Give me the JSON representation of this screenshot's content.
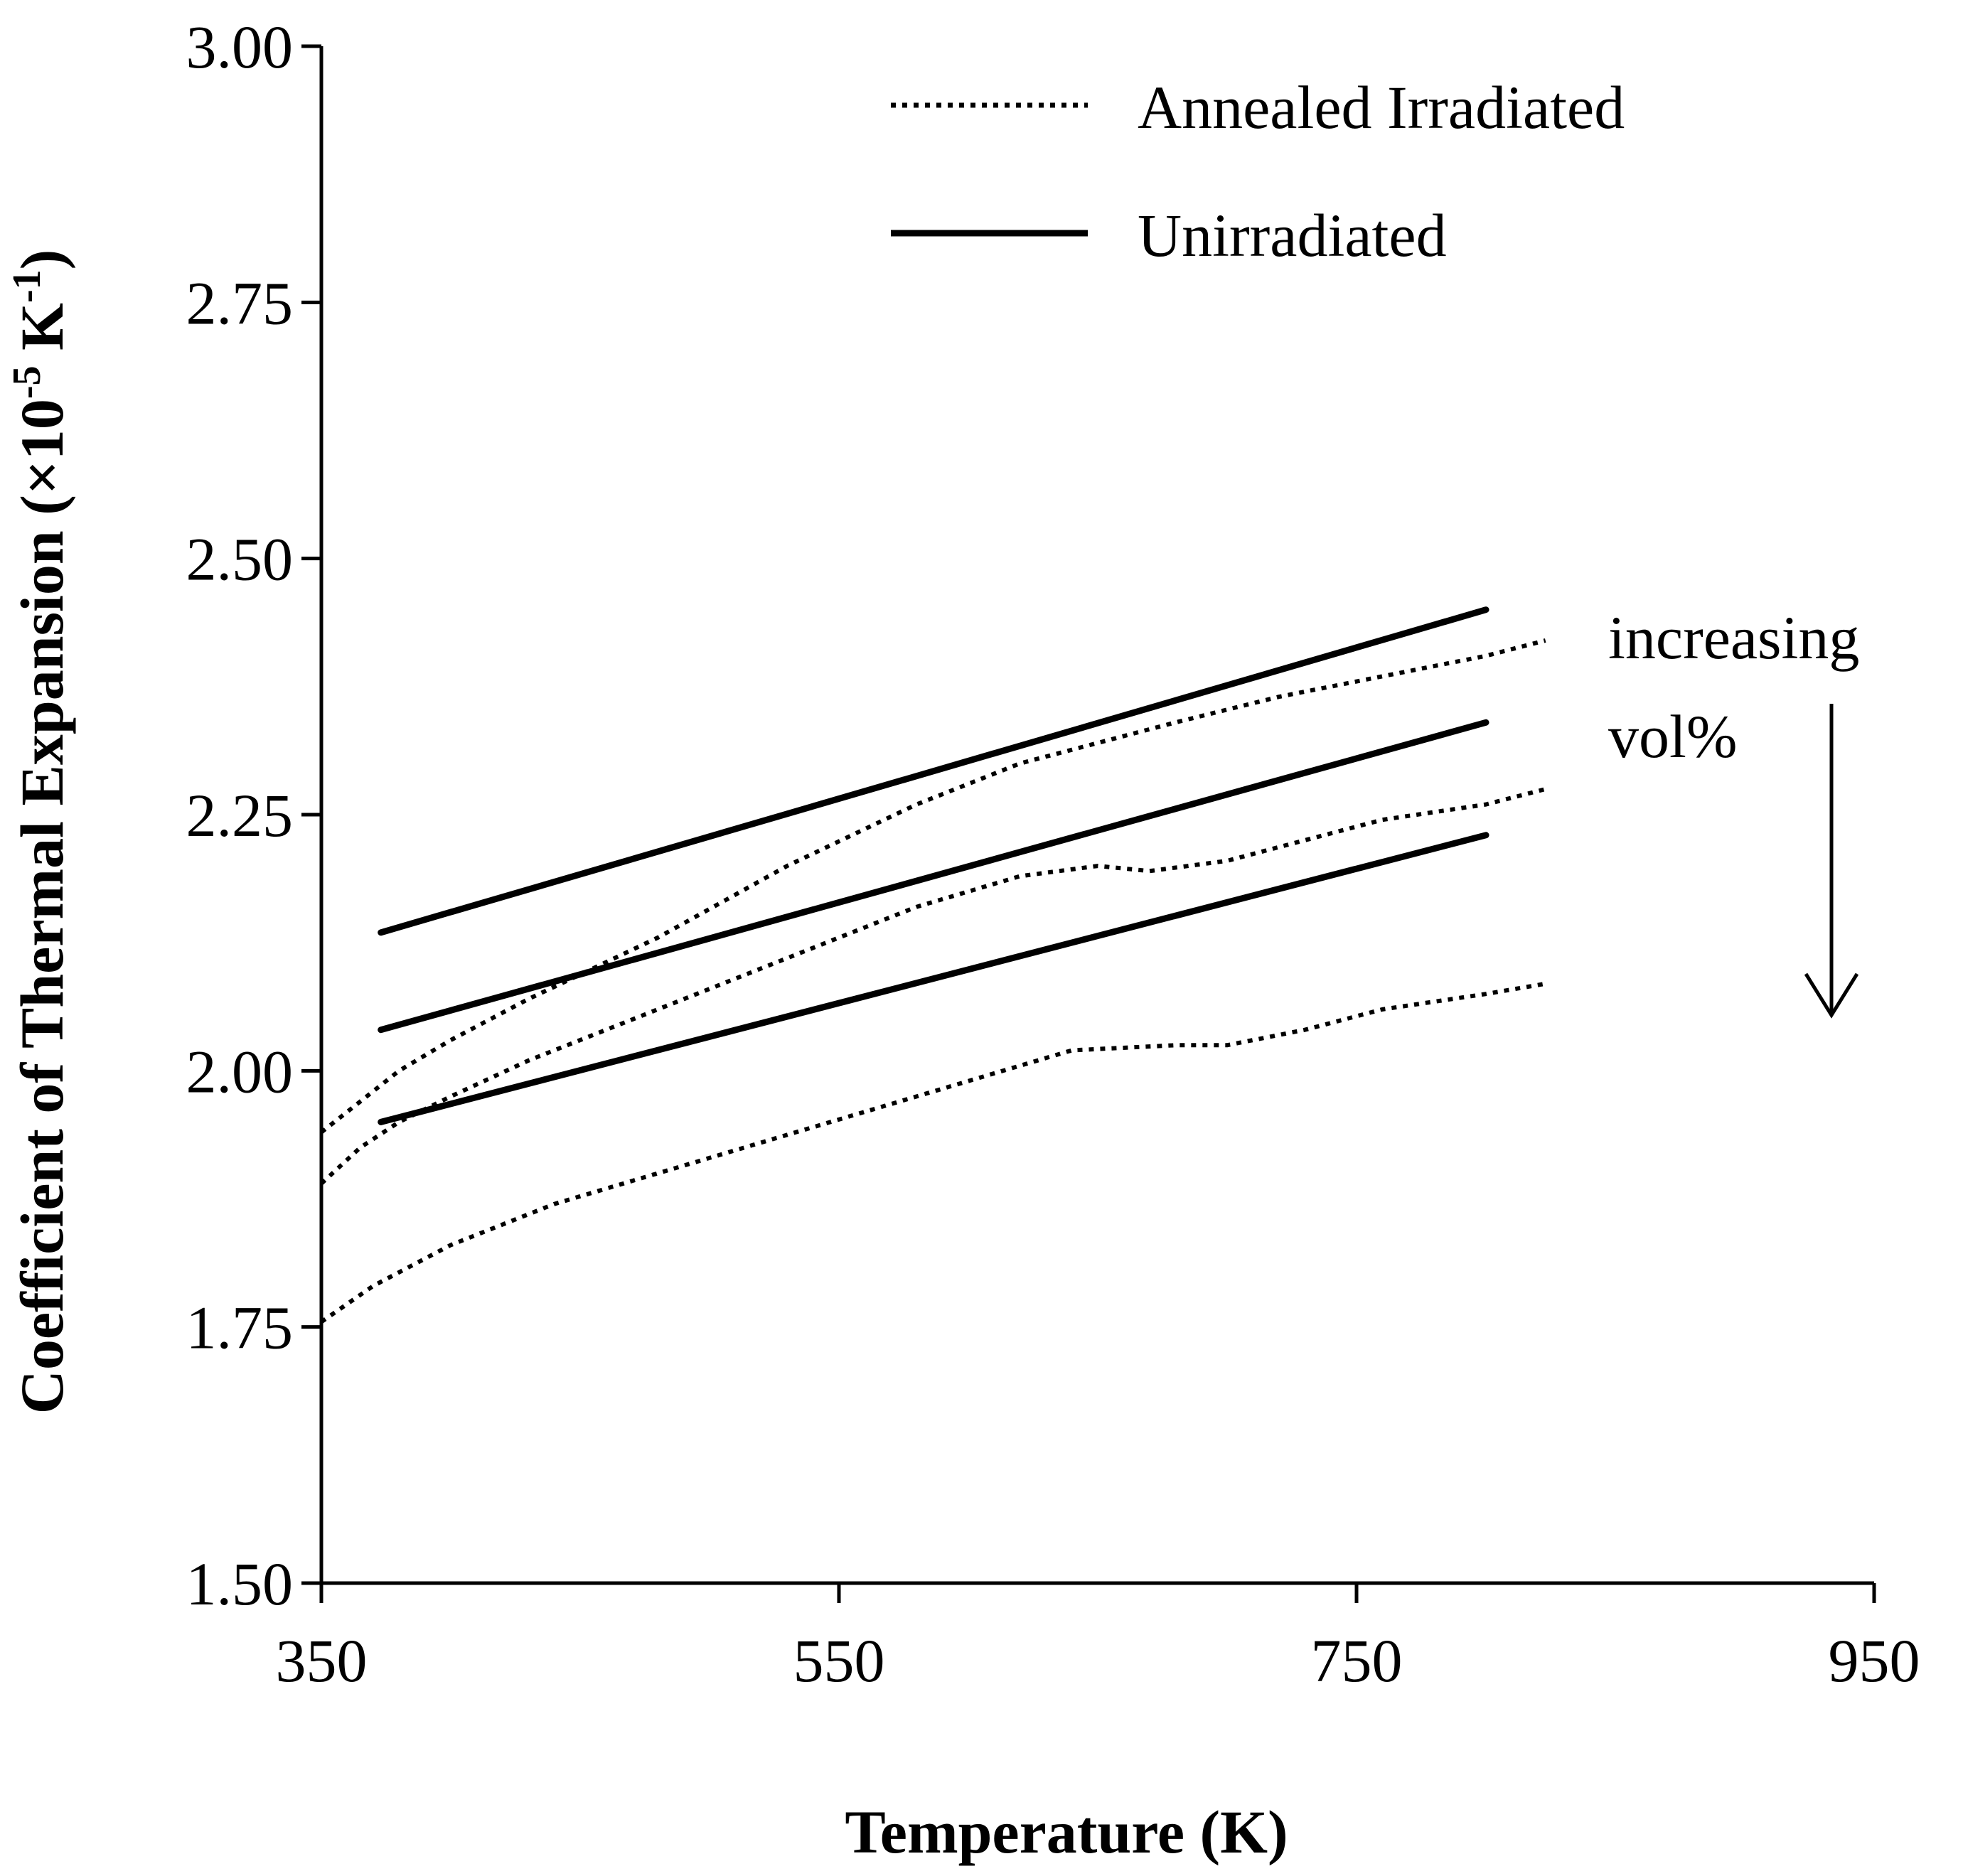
{
  "chart_data": {
    "type": "line",
    "xlabel": "Temperature (K)",
    "ylabel": {
      "prefix": "Coefficient of Thermal Expansion (×10",
      "exp1": "-5",
      "middle": " K",
      "exp2": "-1",
      "suffix": ")"
    },
    "xlim": [
      350,
      950
    ],
    "ylim": [
      1.5,
      3.0
    ],
    "xticks": [
      350,
      550,
      750,
      950
    ],
    "xtick_labels": [
      "350",
      "550",
      "750",
      "950"
    ],
    "yticks": [
      1.5,
      1.75,
      2.0,
      2.25,
      2.5,
      2.75,
      3.0
    ],
    "ytick_labels": [
      "1.50",
      "1.75",
      "2.00",
      "2.25",
      "2.50",
      "2.75",
      "3.00"
    ],
    "grid": false,
    "legend": {
      "placement": "top-right",
      "entries": [
        {
          "label": "Annealed Irradiated",
          "style": "dotted"
        },
        {
          "label": "Unirradiated",
          "style": "solid"
        }
      ]
    },
    "annotation": {
      "lines": [
        "increasing",
        "vol%"
      ],
      "arrow": "down"
    },
    "series": [
      {
        "name": "Unirradiated",
        "style": "solid",
        "x": [
          373,
          800
        ],
        "y": [
          2.135,
          2.45
        ]
      },
      {
        "name": "Unirradiated",
        "style": "solid",
        "x": [
          373,
          800
        ],
        "y": [
          2.04,
          2.34
        ]
      },
      {
        "name": "Unirradiated",
        "style": "solid",
        "x": [
          373,
          800
        ],
        "y": [
          1.95,
          2.23
        ]
      },
      {
        "name": "Annealed Irradiated",
        "style": "dotted",
        "x": [
          350,
          365,
          380,
          400,
          430,
          480,
          530,
          580,
          620,
          680,
          720,
          760,
          800,
          823
        ],
        "y": [
          1.94,
          1.97,
          2.0,
          2.03,
          2.07,
          2.13,
          2.2,
          2.26,
          2.3,
          2.34,
          2.365,
          2.385,
          2.405,
          2.42
        ]
      },
      {
        "name": "Annealed Irradiated",
        "style": "dotted",
        "x": [
          350,
          365,
          380,
          400,
          430,
          480,
          530,
          580,
          620,
          650,
          670,
          700,
          730,
          760,
          800,
          823
        ],
        "y": [
          1.89,
          1.925,
          1.95,
          1.975,
          2.01,
          2.06,
          2.11,
          2.16,
          2.19,
          2.2,
          2.195,
          2.205,
          2.225,
          2.245,
          2.26,
          2.275
        ]
      },
      {
        "name": "Annealed Irradiated",
        "style": "dotted",
        "x": [
          350,
          370,
          400,
          440,
          480,
          520,
          560,
          600,
          640,
          680,
          700,
          730,
          760,
          800,
          823
        ],
        "y": [
          1.755,
          1.79,
          1.83,
          1.87,
          1.9,
          1.93,
          1.96,
          1.99,
          2.02,
          2.025,
          2.025,
          2.04,
          2.06,
          2.075,
          2.085
        ]
      }
    ]
  }
}
